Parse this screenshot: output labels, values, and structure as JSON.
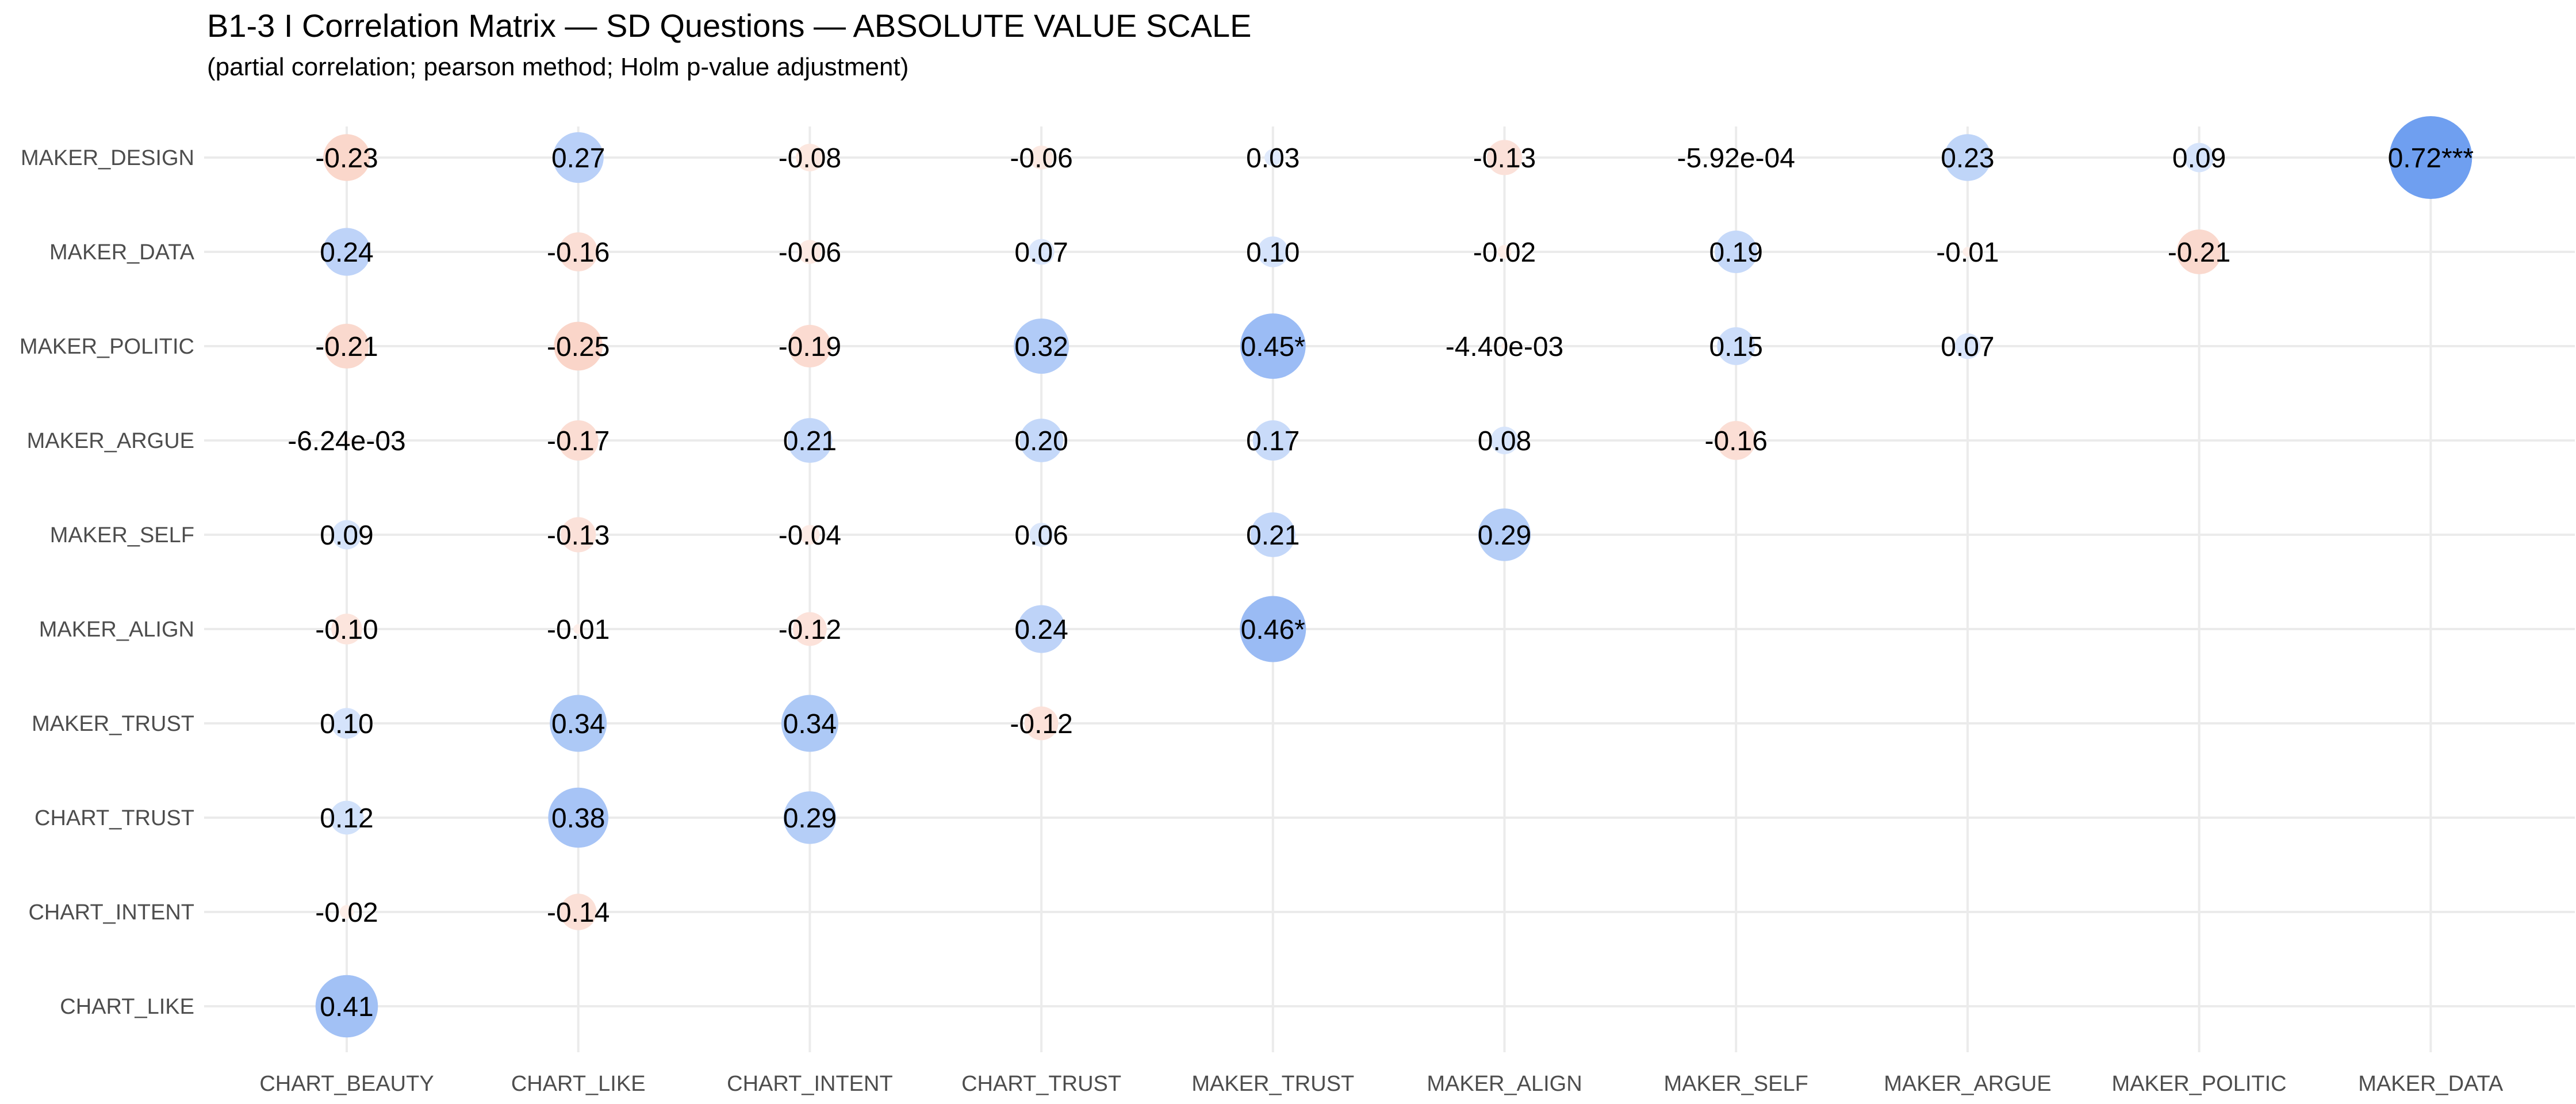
{
  "chart_data": {
    "type": "heatmap",
    "title": "B1-3  I Correlation Matrix — SD Questions — ABSOLUTE VALUE SCALE",
    "subtitle": "(partial correlation; pearson method; Holm p-value adjustment)",
    "x_categories": [
      "CHART_BEAUTY",
      "CHART_LIKE",
      "CHART_INTENT",
      "CHART_TRUST",
      "MAKER_TRUST",
      "MAKER_ALIGN",
      "MAKER_SELF",
      "MAKER_ARGUE",
      "MAKER_POLITIC",
      "MAKER_DATA"
    ],
    "y_categories": [
      "MAKER_DESIGN",
      "MAKER_DATA",
      "MAKER_POLITIC",
      "MAKER_ARGUE",
      "MAKER_SELF",
      "MAKER_ALIGN",
      "MAKER_TRUST",
      "CHART_TRUST",
      "CHART_INTENT",
      "CHART_LIKE"
    ],
    "grid": true,
    "colors": {
      "positive": "#6f9ff0",
      "negative": "#f4a58a"
    },
    "cells": [
      {
        "x": "CHART_BEAUTY",
        "y": "MAKER_DESIGN",
        "value": -0.23,
        "label": "-0.23"
      },
      {
        "x": "CHART_LIKE",
        "y": "MAKER_DESIGN",
        "value": 0.27,
        "label": "0.27"
      },
      {
        "x": "CHART_INTENT",
        "y": "MAKER_DESIGN",
        "value": -0.08,
        "label": "-0.08"
      },
      {
        "x": "CHART_TRUST",
        "y": "MAKER_DESIGN",
        "value": -0.06,
        "label": "-0.06"
      },
      {
        "x": "MAKER_TRUST",
        "y": "MAKER_DESIGN",
        "value": 0.03,
        "label": "0.03"
      },
      {
        "x": "MAKER_ALIGN",
        "y": "MAKER_DESIGN",
        "value": -0.13,
        "label": "-0.13"
      },
      {
        "x": "MAKER_SELF",
        "y": "MAKER_DESIGN",
        "value": -0.000592,
        "label": "-5.92e-04"
      },
      {
        "x": "MAKER_ARGUE",
        "y": "MAKER_DESIGN",
        "value": 0.23,
        "label": "0.23"
      },
      {
        "x": "MAKER_POLITIC",
        "y": "MAKER_DESIGN",
        "value": 0.09,
        "label": "0.09"
      },
      {
        "x": "MAKER_DATA",
        "y": "MAKER_DESIGN",
        "value": 0.72,
        "label": "0.72***"
      },
      {
        "x": "CHART_BEAUTY",
        "y": "MAKER_DATA",
        "value": 0.24,
        "label": "0.24"
      },
      {
        "x": "CHART_LIKE",
        "y": "MAKER_DATA",
        "value": -0.16,
        "label": "-0.16"
      },
      {
        "x": "CHART_INTENT",
        "y": "MAKER_DATA",
        "value": -0.06,
        "label": "-0.06"
      },
      {
        "x": "CHART_TRUST",
        "y": "MAKER_DATA",
        "value": 0.07,
        "label": "0.07"
      },
      {
        "x": "MAKER_TRUST",
        "y": "MAKER_DATA",
        "value": 0.1,
        "label": "0.10"
      },
      {
        "x": "MAKER_ALIGN",
        "y": "MAKER_DATA",
        "value": -0.02,
        "label": "-0.02"
      },
      {
        "x": "MAKER_SELF",
        "y": "MAKER_DATA",
        "value": 0.19,
        "label": "0.19"
      },
      {
        "x": "MAKER_ARGUE",
        "y": "MAKER_DATA",
        "value": -0.01,
        "label": "-0.01"
      },
      {
        "x": "MAKER_POLITIC",
        "y": "MAKER_DATA",
        "value": -0.21,
        "label": "-0.21"
      },
      {
        "x": "CHART_BEAUTY",
        "y": "MAKER_POLITIC",
        "value": -0.21,
        "label": "-0.21"
      },
      {
        "x": "CHART_LIKE",
        "y": "MAKER_POLITIC",
        "value": -0.25,
        "label": "-0.25"
      },
      {
        "x": "CHART_INTENT",
        "y": "MAKER_POLITIC",
        "value": -0.19,
        "label": "-0.19"
      },
      {
        "x": "CHART_TRUST",
        "y": "MAKER_POLITIC",
        "value": 0.32,
        "label": "0.32"
      },
      {
        "x": "MAKER_TRUST",
        "y": "MAKER_POLITIC",
        "value": 0.45,
        "label": "0.45*"
      },
      {
        "x": "MAKER_ALIGN",
        "y": "MAKER_POLITIC",
        "value": -0.0044,
        "label": "-4.40e-03"
      },
      {
        "x": "MAKER_SELF",
        "y": "MAKER_POLITIC",
        "value": 0.15,
        "label": "0.15"
      },
      {
        "x": "MAKER_ARGUE",
        "y": "MAKER_POLITIC",
        "value": 0.07,
        "label": "0.07"
      },
      {
        "x": "CHART_BEAUTY",
        "y": "MAKER_ARGUE",
        "value": -0.00624,
        "label": "-6.24e-03"
      },
      {
        "x": "CHART_LIKE",
        "y": "MAKER_ARGUE",
        "value": -0.17,
        "label": "-0.17"
      },
      {
        "x": "CHART_INTENT",
        "y": "MAKER_ARGUE",
        "value": 0.21,
        "label": "0.21"
      },
      {
        "x": "CHART_TRUST",
        "y": "MAKER_ARGUE",
        "value": 0.2,
        "label": "0.20"
      },
      {
        "x": "MAKER_TRUST",
        "y": "MAKER_ARGUE",
        "value": 0.17,
        "label": "0.17"
      },
      {
        "x": "MAKER_ALIGN",
        "y": "MAKER_ARGUE",
        "value": 0.08,
        "label": "0.08"
      },
      {
        "x": "MAKER_SELF",
        "y": "MAKER_ARGUE",
        "value": -0.16,
        "label": "-0.16"
      },
      {
        "x": "CHART_BEAUTY",
        "y": "MAKER_SELF",
        "value": 0.09,
        "label": "0.09"
      },
      {
        "x": "CHART_LIKE",
        "y": "MAKER_SELF",
        "value": -0.13,
        "label": "-0.13"
      },
      {
        "x": "CHART_INTENT",
        "y": "MAKER_SELF",
        "value": -0.04,
        "label": "-0.04"
      },
      {
        "x": "CHART_TRUST",
        "y": "MAKER_SELF",
        "value": 0.06,
        "label": "0.06"
      },
      {
        "x": "MAKER_TRUST",
        "y": "MAKER_SELF",
        "value": 0.21,
        "label": "0.21"
      },
      {
        "x": "MAKER_ALIGN",
        "y": "MAKER_SELF",
        "value": 0.29,
        "label": "0.29"
      },
      {
        "x": "CHART_BEAUTY",
        "y": "MAKER_ALIGN",
        "value": -0.1,
        "label": "-0.10"
      },
      {
        "x": "CHART_LIKE",
        "y": "MAKER_ALIGN",
        "value": -0.01,
        "label": "-0.01"
      },
      {
        "x": "CHART_INTENT",
        "y": "MAKER_ALIGN",
        "value": -0.12,
        "label": "-0.12"
      },
      {
        "x": "CHART_TRUST",
        "y": "MAKER_ALIGN",
        "value": 0.24,
        "label": "0.24"
      },
      {
        "x": "MAKER_TRUST",
        "y": "MAKER_ALIGN",
        "value": 0.46,
        "label": "0.46*"
      },
      {
        "x": "CHART_BEAUTY",
        "y": "MAKER_TRUST",
        "value": 0.1,
        "label": "0.10"
      },
      {
        "x": "CHART_LIKE",
        "y": "MAKER_TRUST",
        "value": 0.34,
        "label": "0.34"
      },
      {
        "x": "CHART_INTENT",
        "y": "MAKER_TRUST",
        "value": 0.34,
        "label": "0.34"
      },
      {
        "x": "CHART_TRUST",
        "y": "MAKER_TRUST",
        "value": -0.12,
        "label": "-0.12"
      },
      {
        "x": "CHART_BEAUTY",
        "y": "CHART_TRUST",
        "value": 0.12,
        "label": "0.12"
      },
      {
        "x": "CHART_LIKE",
        "y": "CHART_TRUST",
        "value": 0.38,
        "label": "0.38"
      },
      {
        "x": "CHART_INTENT",
        "y": "CHART_TRUST",
        "value": 0.29,
        "label": "0.29"
      },
      {
        "x": "CHART_BEAUTY",
        "y": "CHART_INTENT",
        "value": -0.02,
        "label": "-0.02"
      },
      {
        "x": "CHART_LIKE",
        "y": "CHART_INTENT",
        "value": -0.14,
        "label": "-0.14"
      },
      {
        "x": "CHART_BEAUTY",
        "y": "CHART_LIKE",
        "value": 0.41,
        "label": "0.41"
      }
    ]
  }
}
